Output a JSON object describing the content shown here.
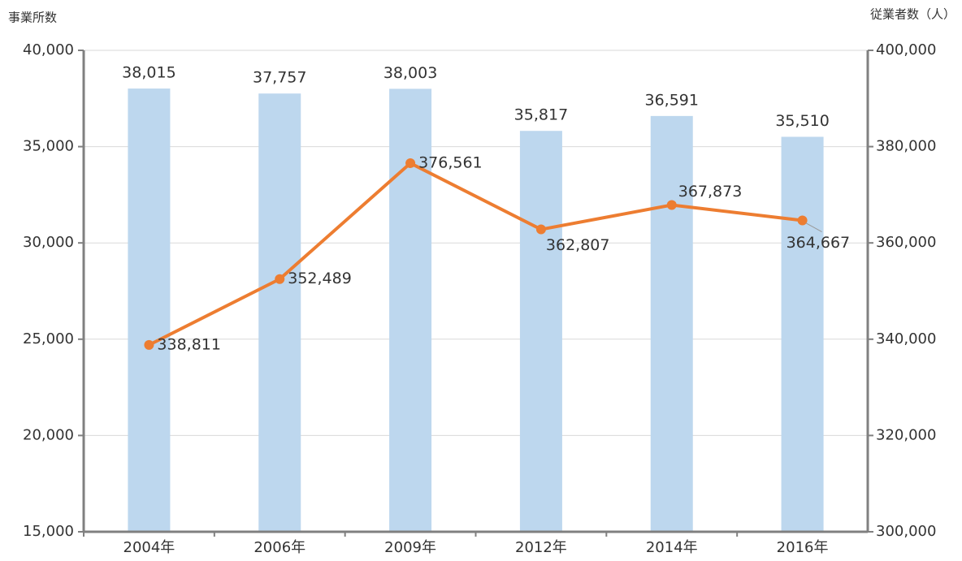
{
  "chart_data": {
    "type": "bar",
    "ylabel": "事業所数",
    "y2label": "従業者数（人）",
    "categories": [
      "2004年",
      "2006年",
      "2009年",
      "2012年",
      "2014年",
      "2016年"
    ],
    "series": [
      {
        "type": "bar",
        "color": "#bdd7ee",
        "values": [
          38015,
          37757,
          38003,
          35817,
          36591,
          35510
        ],
        "value_labels": [
          "38,015",
          "37,757",
          "38,003",
          "35,817",
          "36,591",
          "35,510"
        ]
      },
      {
        "type": "line",
        "axis": "y2",
        "color": "#ed7d31",
        "values": [
          338811,
          352489,
          376561,
          362807,
          367873,
          364667
        ],
        "value_labels": [
          "338,811",
          "352,489",
          "376,561",
          "362,807",
          "367,873",
          "364,667"
        ]
      }
    ],
    "ylim": [
      15000,
      40000
    ],
    "yticks": [
      {
        "value": 15000,
        "label": "15,000"
      },
      {
        "value": 20000,
        "label": "20,000"
      },
      {
        "value": 25000,
        "label": "25,000"
      },
      {
        "value": 30000,
        "label": "30,000"
      },
      {
        "value": 35000,
        "label": "35,000"
      },
      {
        "value": 40000,
        "label": "40,000"
      }
    ],
    "y2lim": [
      300000,
      400000
    ],
    "y2ticks": [
      {
        "value": 300000,
        "label": "300,000"
      },
      {
        "value": 320000,
        "label": "320,000"
      },
      {
        "value": 340000,
        "label": "340,000"
      },
      {
        "value": 360000,
        "label": "360,000"
      },
      {
        "value": 380000,
        "label": "380,000"
      },
      {
        "value": 400000,
        "label": "400,000"
      }
    ],
    "grid": true
  }
}
